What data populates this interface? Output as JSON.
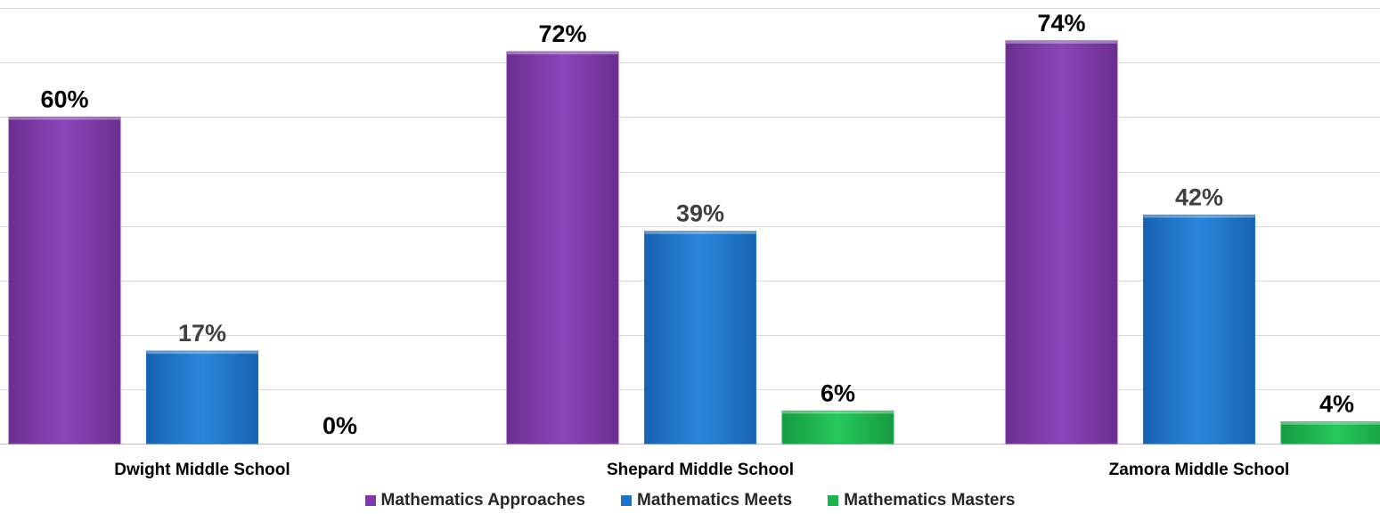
{
  "chart_data": {
    "type": "bar",
    "categories": [
      "Dwight Middle School",
      "Shepard Middle School",
      "Zamora Middle School"
    ],
    "series": [
      {
        "name": "Mathematics Approaches",
        "values": [
          60,
          72,
          74
        ],
        "labels": [
          "60%",
          "72%",
          "74%"
        ],
        "color": "#7F3AAA"
      },
      {
        "name": "Mathematics Meets",
        "values": [
          17,
          39,
          42
        ],
        "labels": [
          "17%",
          "39%",
          "42%"
        ],
        "color": "#1E73C8"
      },
      {
        "name": "Mathematics Masters",
        "values": [
          0,
          6,
          4
        ],
        "labels": [
          "0%",
          "6%",
          "4%"
        ],
        "color": "#1DB44E"
      }
    ],
    "label_colors": [
      "#000000",
      "#404040",
      "#000000"
    ],
    "ylim": [
      0,
      80
    ],
    "grid": true,
    "legend_position": "bottom"
  }
}
